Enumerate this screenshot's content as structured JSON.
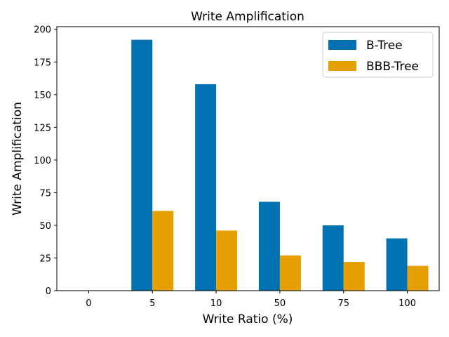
{
  "chart_data": {
    "type": "bar",
    "title": "Write Amplification",
    "xlabel": "Write Ratio (%)",
    "ylabel": "Write Amplification",
    "categories": [
      "0",
      "5",
      "10",
      "50",
      "75",
      "100"
    ],
    "series": [
      {
        "name": "B-Tree",
        "color": "#0072b2",
        "values": [
          0,
          192,
          158,
          68,
          50,
          40
        ]
      },
      {
        "name": "BBB-Tree",
        "color": "#e69f00",
        "values": [
          0,
          61,
          46,
          27,
          22,
          19
        ]
      }
    ],
    "ylim": [
      0,
      202
    ],
    "yticks": [
      0,
      25,
      50,
      75,
      100,
      125,
      150,
      175,
      200
    ],
    "grid": false,
    "legend_position": "top-right"
  }
}
